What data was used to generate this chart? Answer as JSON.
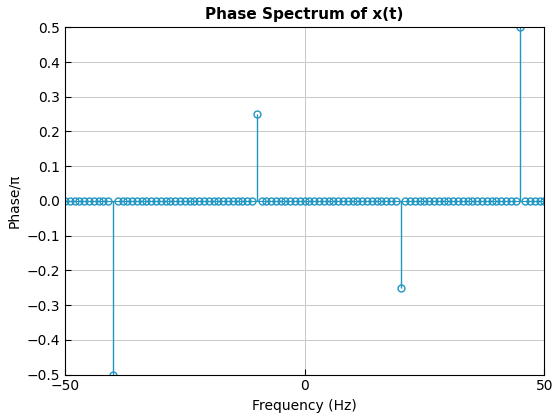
{
  "title": "Phase Spectrum of x(t)",
  "xlabel": "Frequency (Hz)",
  "ylabel": "Phase/π",
  "xlim": [
    -50,
    50
  ],
  "ylim": [
    -0.5,
    0.5
  ],
  "stem_x": [
    -50,
    -49,
    -48,
    -47,
    -46,
    -45,
    -44,
    -43,
    -42,
    -41,
    -40,
    -39,
    -38,
    -37,
    -36,
    -35,
    -34,
    -33,
    -32,
    -31,
    -30,
    -29,
    -28,
    -27,
    -26,
    -25,
    -24,
    -23,
    -22,
    -21,
    -20,
    -19,
    -18,
    -17,
    -16,
    -15,
    -14,
    -13,
    -12,
    -11,
    -10,
    -9,
    -8,
    -7,
    -6,
    -5,
    -4,
    -3,
    -2,
    -1,
    0,
    1,
    2,
    3,
    4,
    5,
    6,
    7,
    8,
    9,
    10,
    11,
    12,
    13,
    14,
    15,
    16,
    17,
    18,
    19,
    20,
    21,
    22,
    23,
    24,
    25,
    26,
    27,
    28,
    29,
    30,
    31,
    32,
    33,
    34,
    35,
    36,
    37,
    38,
    39,
    40,
    41,
    42,
    43,
    44,
    45,
    46,
    47,
    48,
    49,
    50
  ],
  "stem_y": [
    0,
    0,
    0,
    0,
    0,
    0,
    0,
    0,
    0,
    0,
    -0.5,
    0,
    0,
    0,
    0,
    0,
    0,
    0,
    0,
    0,
    0,
    0,
    0,
    0,
    0,
    0,
    0,
    0,
    0,
    0,
    0,
    0,
    0,
    0,
    0,
    0,
    0,
    0,
    0,
    0,
    0.25,
    0,
    0,
    0,
    0,
    0,
    0,
    0,
    0,
    0,
    0,
    0,
    0,
    0,
    0,
    0,
    0,
    0,
    0,
    0,
    0,
    0,
    0,
    0,
    0,
    0,
    0,
    0,
    0,
    0,
    -0.25,
    0,
    0,
    0,
    0,
    0,
    0,
    0,
    0,
    0,
    0,
    0,
    0,
    0,
    0,
    0,
    0,
    0,
    0,
    0,
    0,
    0,
    0,
    0,
    0,
    0.5,
    0,
    0,
    0,
    0,
    0
  ],
  "line_color": "#2196c4",
  "marker_color": "#2196c4",
  "background_color": "#ffffff",
  "grid_color": "#c8c8c8",
  "title_fontsize": 11,
  "label_fontsize": 10,
  "yticks": [
    -0.5,
    -0.4,
    -0.3,
    -0.2,
    -0.1,
    0.0,
    0.1,
    0.2,
    0.3,
    0.4,
    0.5
  ],
  "xticks": [
    -50,
    0,
    50
  ],
  "figsize": [
    5.6,
    4.2
  ],
  "dpi": 100
}
